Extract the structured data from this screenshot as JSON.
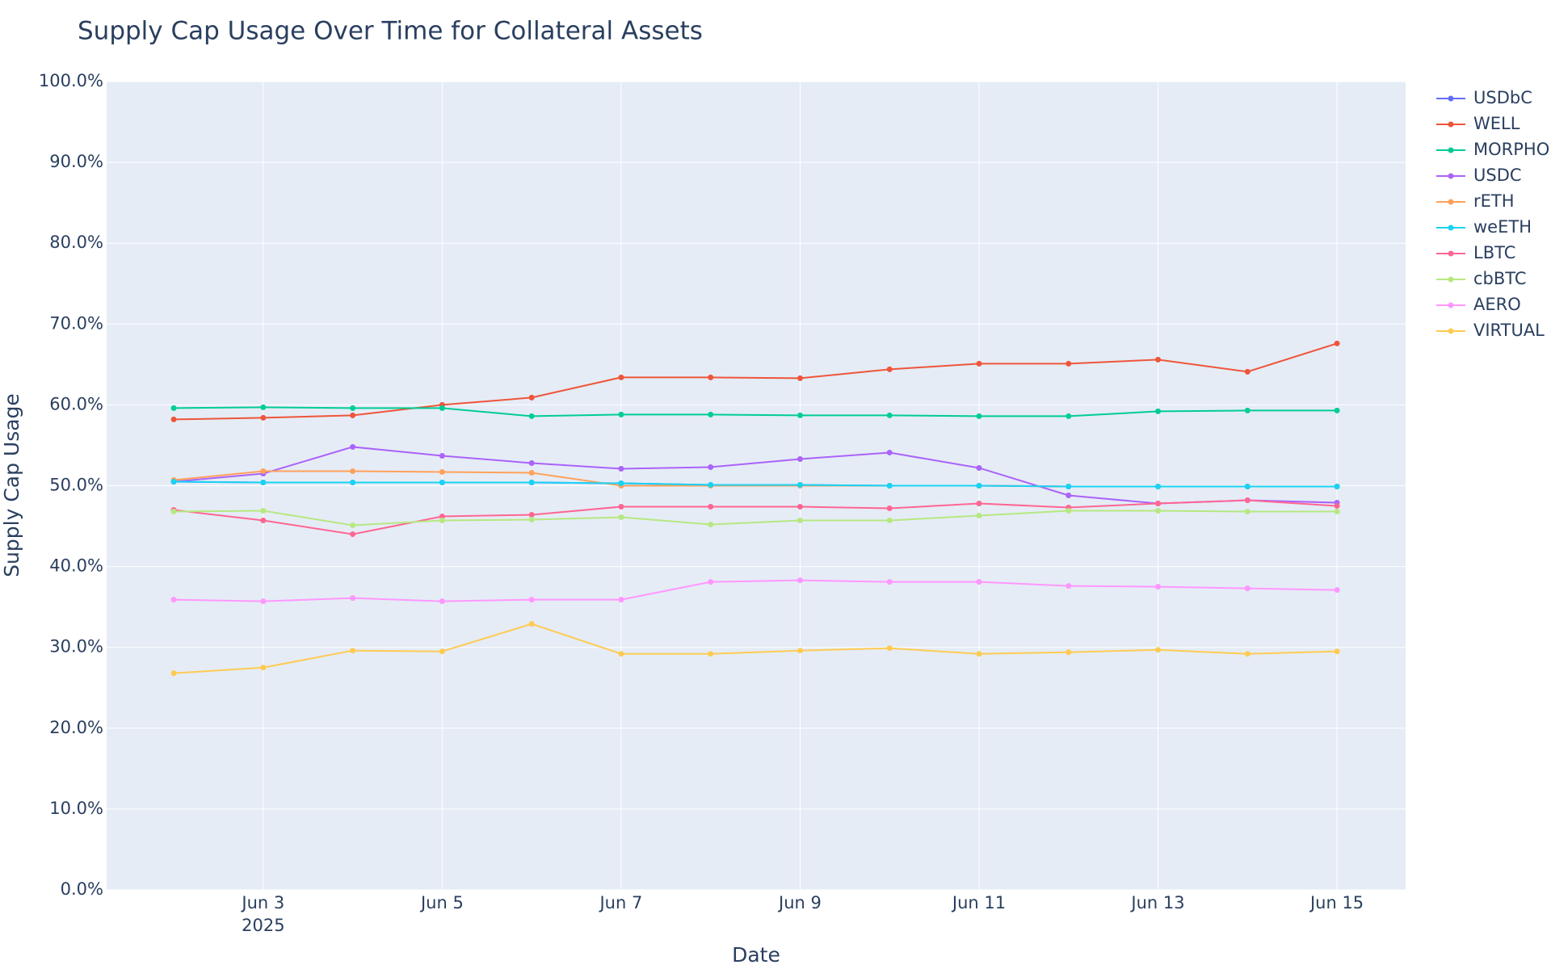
{
  "chart_data": {
    "type": "line",
    "title": "Supply Cap Usage Over Time for Collateral Assets",
    "x_label": "Date",
    "y_label": "Supply Cap Usage",
    "x": [
      "2025-06-02",
      "2025-06-03",
      "2025-06-04",
      "2025-06-05",
      "2025-06-06",
      "2025-06-07",
      "2025-06-08",
      "2025-06-09",
      "2025-06-10",
      "2025-06-11",
      "2025-06-12",
      "2025-06-13",
      "2025-06-14",
      "2025-06-15"
    ],
    "xlim": [
      "2025-06-01T06:00:00Z",
      "2025-06-15T18:24:00Z"
    ],
    "xticks": [
      {
        "value": "2025-06-03",
        "label": "Jun 3"
      },
      {
        "value": "2025-06-05",
        "label": "Jun 5"
      },
      {
        "value": "2025-06-07",
        "label": "Jun 7"
      },
      {
        "value": "2025-06-09",
        "label": "Jun 9"
      },
      {
        "value": "2025-06-11",
        "label": "Jun 11"
      },
      {
        "value": "2025-06-13",
        "label": "Jun 13"
      },
      {
        "value": "2025-06-15",
        "label": "Jun 15"
      }
    ],
    "x_year": "2025",
    "ylim": [
      0,
      100
    ],
    "yticks": [
      {
        "value": 0,
        "label": "0.0%"
      },
      {
        "value": 10,
        "label": "10.0%"
      },
      {
        "value": 20,
        "label": "20.0%"
      },
      {
        "value": 30,
        "label": "30.0%"
      },
      {
        "value": 40,
        "label": "40.0%"
      },
      {
        "value": 50,
        "label": "50.0%"
      },
      {
        "value": 60,
        "label": "60.0%"
      },
      {
        "value": 70,
        "label": "70.0%"
      },
      {
        "value": 80,
        "label": "80.0%"
      },
      {
        "value": 90,
        "label": "90.0%"
      },
      {
        "value": 100,
        "label": "100.0%"
      }
    ],
    "grid": true,
    "legend": "outside-right",
    "series": [
      {
        "name": "USDbC",
        "color": "#636efa",
        "values": [
          50.5,
          50.4,
          50.4,
          50.4,
          50.4,
          50.3,
          50.1,
          50.1,
          50.0,
          50.0,
          49.9,
          49.9,
          49.9,
          49.9
        ]
      },
      {
        "name": "WELL",
        "color": "#EF553B",
        "values": [
          58.2,
          58.4,
          58.7,
          60.0,
          60.9,
          63.4,
          63.4,
          63.3,
          64.4,
          65.1,
          65.1,
          65.6,
          64.1,
          67.6
        ]
      },
      {
        "name": "MORPHO",
        "color": "#00cc96",
        "values": [
          59.6,
          59.7,
          59.6,
          59.6,
          58.6,
          58.8,
          58.8,
          58.7,
          58.7,
          58.6,
          58.6,
          59.2,
          59.3,
          59.3
        ]
      },
      {
        "name": "USDC",
        "color": "#ab63fa",
        "values": [
          50.5,
          51.5,
          54.8,
          53.7,
          52.8,
          52.1,
          52.3,
          53.3,
          54.1,
          52.2,
          48.8,
          47.8,
          48.2,
          47.9
        ]
      },
      {
        "name": "rETH",
        "color": "#FFA15A",
        "values": [
          50.7,
          51.8,
          51.8,
          51.7,
          51.6,
          50.0,
          50.0,
          50.0,
          50.0,
          50.0,
          49.9,
          49.9,
          49.9,
          49.9
        ]
      },
      {
        "name": "weETH",
        "color": "#19d3f3",
        "values": [
          50.5,
          50.4,
          50.4,
          50.4,
          50.4,
          50.3,
          50.1,
          50.1,
          50.0,
          50.0,
          49.9,
          49.9,
          49.9,
          49.9
        ]
      },
      {
        "name": "LBTC",
        "color": "#FF6692",
        "values": [
          47.0,
          45.7,
          44.0,
          46.2,
          46.4,
          47.4,
          47.4,
          47.4,
          47.2,
          47.8,
          47.3,
          47.8,
          48.2,
          47.5
        ]
      },
      {
        "name": "cbBTC",
        "color": "#B6E880",
        "values": [
          46.8,
          46.9,
          45.1,
          45.7,
          45.8,
          46.1,
          45.2,
          45.7,
          45.7,
          46.3,
          46.9,
          46.9,
          46.8,
          46.8
        ]
      },
      {
        "name": "AERO",
        "color": "#FF97FF",
        "values": [
          35.9,
          35.7,
          36.1,
          35.7,
          35.9,
          35.9,
          38.1,
          38.3,
          38.1,
          38.1,
          37.6,
          37.5,
          37.3,
          37.1
        ]
      },
      {
        "name": "VIRTUAL",
        "color": "#FECB52",
        "values": [
          26.8,
          27.5,
          29.6,
          29.5,
          32.9,
          29.2,
          29.2,
          29.6,
          29.9,
          29.2,
          29.4,
          29.7,
          29.2,
          29.5
        ]
      }
    ]
  }
}
